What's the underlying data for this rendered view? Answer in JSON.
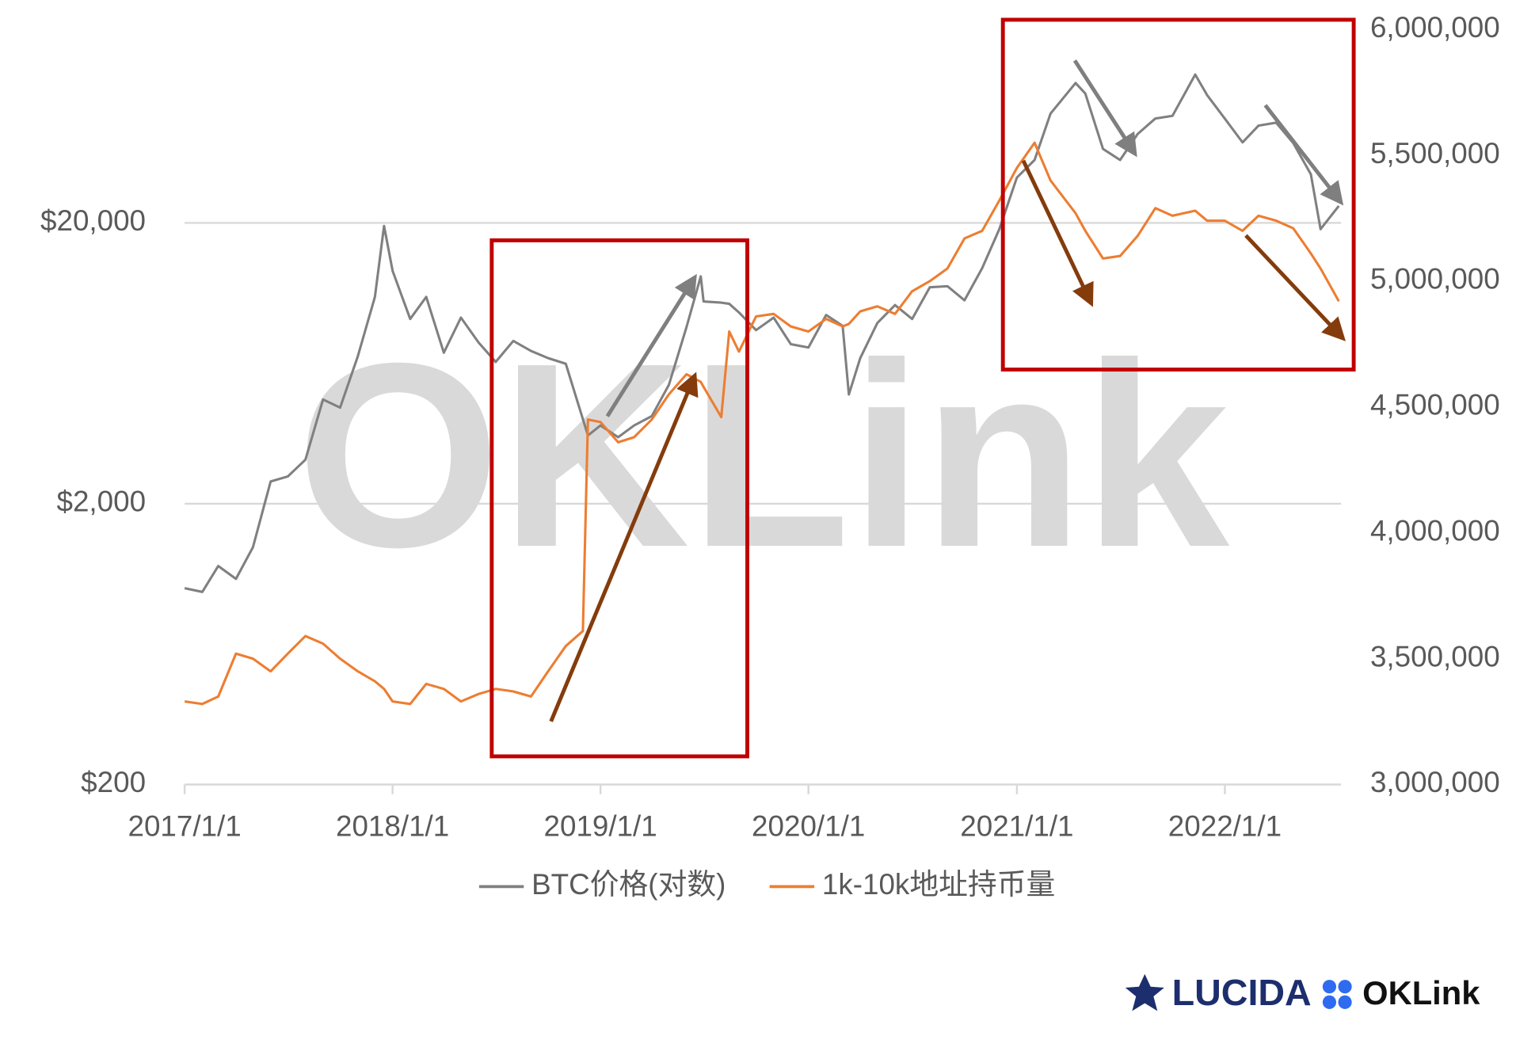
{
  "chart_data": {
    "type": "line",
    "x": [
      "2017/1/1",
      "2017/2/1",
      "2017/3/1",
      "2017/4/1",
      "2017/5/1",
      "2017/6/1",
      "2017/7/1",
      "2017/8/1",
      "2017/9/1",
      "2017/10/1",
      "2017/11/1",
      "2017/12/1",
      "2017/12/17",
      "2018/1/1",
      "2018/2/1",
      "2018/3/1",
      "2018/4/1",
      "2018/5/1",
      "2018/6/1",
      "2018/7/1",
      "2018/8/1",
      "2018/9/1",
      "2018/10/1",
      "2018/11/1",
      "2018/12/1",
      "2018/12/10",
      "2019/1/1",
      "2019/2/1",
      "2019/3/1",
      "2019/4/1",
      "2019/5/1",
      "2019/6/1",
      "2019/6/26",
      "2019/7/1",
      "2019/8/1",
      "2019/8/15",
      "2019/9/1",
      "2019/10/1",
      "2019/11/1",
      "2019/12/1",
      "2020/1/1",
      "2020/2/1",
      "2020/3/1",
      "2020/3/12",
      "2020/4/1",
      "2020/5/1",
      "2020/6/1",
      "2020/7/1",
      "2020/8/1",
      "2020/9/1",
      "2020/10/1",
      "2020/11/1",
      "2020/12/1",
      "2021/1/1",
      "2021/2/1",
      "2021/3/1",
      "2021/4/14",
      "2021/5/1",
      "2021/6/1",
      "2021/7/1",
      "2021/8/1",
      "2021/9/1",
      "2021/10/1",
      "2021/11/10",
      "2021/12/1",
      "2022/1/1",
      "2022/2/1",
      "2022/3/1",
      "2022/4/1",
      "2022/5/1",
      "2022/6/1",
      "2022/6/18",
      "2022/7/20"
    ],
    "series": [
      {
        "name": "BTC价格(对数)",
        "color": "#808080",
        "axis": "y",
        "values": [
          1000,
          970,
          1200,
          1080,
          1400,
          2400,
          2500,
          2870,
          4700,
          4400,
          6700,
          10900,
          19500,
          13500,
          9100,
          10900,
          6900,
          9200,
          7500,
          6400,
          7600,
          7000,
          6600,
          6300,
          4000,
          3500,
          3800,
          3450,
          3800,
          4100,
          5300,
          8500,
          12900,
          10500,
          10400,
          10300,
          9600,
          8300,
          9200,
          7400,
          7200,
          9400,
          8600,
          4900,
          6600,
          8800,
          10200,
          9100,
          11800,
          11900,
          10600,
          13800,
          19000,
          29000,
          33500,
          49000,
          63000,
          57800,
          36700,
          33500,
          41500,
          47100,
          48100,
          67500,
          57000,
          47000,
          38700,
          44400,
          45500,
          38500,
          29800,
          19000,
          23000
        ]
      },
      {
        "name": "1k-10k地址持币量",
        "color": "#ed7d31",
        "axis": "y2",
        "values": [
          3330000,
          3320000,
          3350000,
          3520000,
          3500000,
          3450000,
          3520000,
          3590000,
          3560000,
          3500000,
          3450000,
          3410000,
          3380000,
          3330000,
          3320000,
          3400000,
          3380000,
          3330000,
          3360000,
          3380000,
          3370000,
          3350000,
          3450000,
          3550000,
          3610000,
          4450000,
          4440000,
          4360000,
          4380000,
          4450000,
          4550000,
          4630000,
          4600000,
          4580000,
          4460000,
          4800000,
          4720000,
          4860000,
          4870000,
          4820000,
          4800000,
          4850000,
          4820000,
          4830000,
          4880000,
          4900000,
          4870000,
          4960000,
          5000000,
          5050000,
          5170000,
          5200000,
          5320000,
          5450000,
          5550000,
          5400000,
          5270000,
          5200000,
          5090000,
          5100000,
          5180000,
          5290000,
          5260000,
          5280000,
          5240000,
          5240000,
          5200000,
          5260000,
          5240000,
          5210000,
          5110000,
          5050000,
          4920000
        ]
      }
    ],
    "xlim": [
      "2017/1/1",
      "2022/7/24"
    ],
    "xticks": [
      "2017/1/1",
      "2018/1/1",
      "2019/1/1",
      "2020/1/1",
      "2021/1/1",
      "2022/1/1"
    ],
    "yscale": "log",
    "ylim": [
      200,
      97700
    ],
    "yticks": [
      {
        "value": 200,
        "label": "$200"
      },
      {
        "value": 2000,
        "label": "$2,000"
      },
      {
        "value": 20000,
        "label": "$20,000"
      }
    ],
    "y2lim": [
      3000000,
      6000000
    ],
    "y2ticks": [
      {
        "value": 3000000,
        "label": "3,000,000"
      },
      {
        "value": 3500000,
        "label": "3,500,000"
      },
      {
        "value": 4000000,
        "label": "4,000,000"
      },
      {
        "value": 4500000,
        "label": "4,500,000"
      },
      {
        "value": 5000000,
        "label": "5,000,000"
      },
      {
        "value": 5500000,
        "label": "5,500,000"
      },
      {
        "value": 6000000,
        "label": "6,000,000"
      }
    ],
    "grid": true,
    "legend": "bottom",
    "watermark": "OKLink"
  },
  "logos": [
    "LUCIDA",
    "OKLink"
  ]
}
